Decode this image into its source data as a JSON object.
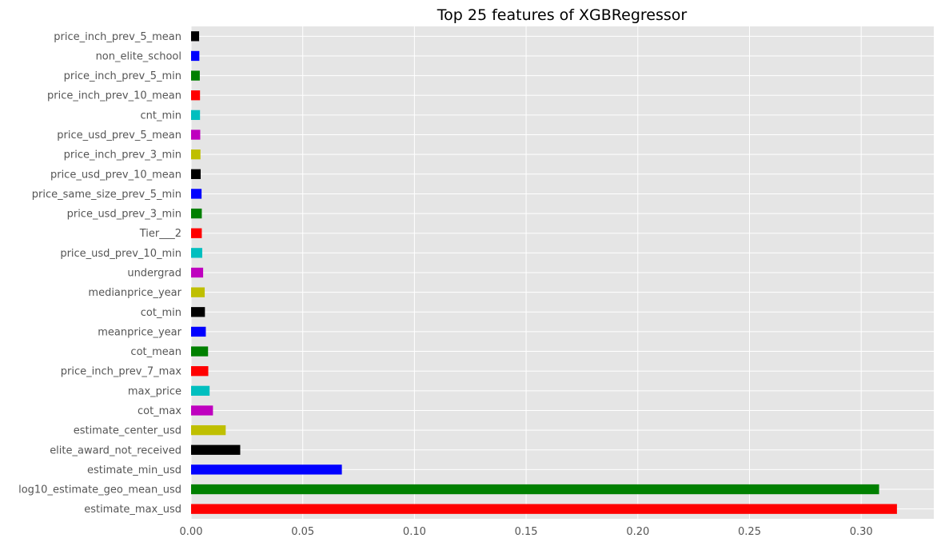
{
  "chart_data": {
    "type": "bar",
    "orientation": "horizontal",
    "title": "Top 25 features of XGBRegressor",
    "xlabel": "",
    "ylabel": "",
    "xlim": [
      0,
      0.3325
    ],
    "xticks": [
      0.0,
      0.05,
      0.1,
      0.15,
      0.2,
      0.25,
      0.3
    ],
    "xtick_labels": [
      "0.00",
      "0.05",
      "0.10",
      "0.15",
      "0.20",
      "0.25",
      "0.30"
    ],
    "grid": true,
    "legend": "none",
    "background_color": "#e5e5e5",
    "grid_color": "#ffffff",
    "categories": [
      "estimate_max_usd",
      "log10_estimate_geo_mean_usd",
      "estimate_min_usd",
      "elite_award_not_received",
      "estimate_center_usd",
      "cot_max",
      "max_price",
      "price_inch_prev_7_max",
      "cot_mean",
      "meanprice_year",
      "cot_min",
      "medianprice_year",
      "undergrad",
      "price_usd_prev_10_min",
      "Tier___2",
      "price_usd_prev_3_min",
      "price_same_size_prev_5_min",
      "price_usd_prev_10_mean",
      "price_inch_prev_3_min",
      "price_usd_prev_5_mean",
      "cnt_min",
      "price_inch_prev_10_mean",
      "price_inch_prev_5_min",
      "non_elite_school",
      "price_inch_prev_5_mean"
    ],
    "values": [
      0.316,
      0.308,
      0.0675,
      0.022,
      0.0155,
      0.0098,
      0.0083,
      0.0077,
      0.0076,
      0.0066,
      0.0062,
      0.0061,
      0.0054,
      0.005,
      0.0048,
      0.0048,
      0.0047,
      0.0043,
      0.0042,
      0.0041,
      0.004,
      0.004,
      0.0039,
      0.0037,
      0.0036
    ],
    "colors": [
      "#ff0000",
      "#008000",
      "#0000ff",
      "#000000",
      "#bfbf00",
      "#bf00bf",
      "#00bfbf",
      "#ff0000",
      "#008000",
      "#0000ff",
      "#000000",
      "#bfbf00",
      "#bf00bf",
      "#00bfbf",
      "#ff0000",
      "#008000",
      "#0000ff",
      "#000000",
      "#bfbf00",
      "#bf00bf",
      "#00bfbf",
      "#ff0000",
      "#008000",
      "#0000ff",
      "#000000"
    ]
  }
}
